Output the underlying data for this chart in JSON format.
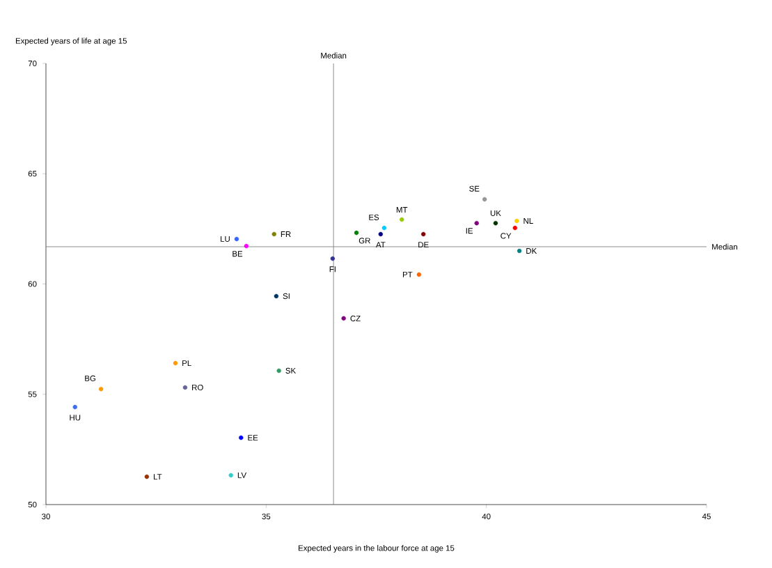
{
  "chart_data": {
    "type": "scatter",
    "xlabel": "Expected years in the labour force at age 15",
    "ylabel": "Expected years of life at age 15",
    "xlim": [
      30,
      45
    ],
    "xticks": [
      30,
      35,
      40,
      45
    ],
    "ylim": [
      50,
      70
    ],
    "yticks": [
      50,
      55,
      60,
      65,
      70
    ],
    "grid": false,
    "ref_lines": [
      {
        "axis": "x",
        "value": 36.53,
        "label": "Median"
      },
      {
        "axis": "y",
        "value": 61.69,
        "label": "Median"
      }
    ],
    "series": [
      {
        "name": "HU",
        "color": "#3c6cf0",
        "x": [
          30.66
        ],
        "values": [
          54.42
        ]
      },
      {
        "name": "BG",
        "color": "#ff9900",
        "x": [
          31.25
        ],
        "values": [
          55.24
        ]
      },
      {
        "name": "LT",
        "color": "#993300",
        "x": [
          32.29
        ],
        "values": [
          51.26
        ]
      },
      {
        "name": "PL",
        "color": "#ff9900",
        "x": [
          32.94
        ],
        "values": [
          56.41
        ]
      },
      {
        "name": "RO",
        "color": "#666699",
        "x": [
          33.16
        ],
        "values": [
          55.31
        ]
      },
      {
        "name": "LV",
        "color": "#33cccc",
        "x": [
          34.2
        ],
        "values": [
          51.33
        ]
      },
      {
        "name": "EE",
        "color": "#0000ff",
        "x": [
          34.43
        ],
        "values": [
          53.03
        ]
      },
      {
        "name": "LU",
        "color": "#3366ff",
        "x": [
          34.33
        ],
        "values": [
          62.04
        ]
      },
      {
        "name": "BE",
        "color": "#ff00ff",
        "x": [
          34.55
        ],
        "values": [
          61.72
        ]
      },
      {
        "name": "FR",
        "color": "#808000",
        "x": [
          35.18
        ],
        "values": [
          62.26
        ]
      },
      {
        "name": "SI",
        "color": "#003366",
        "x": [
          35.23
        ],
        "values": [
          59.45
        ]
      },
      {
        "name": "SK",
        "color": "#339966",
        "x": [
          35.29
        ],
        "values": [
          56.07
        ]
      },
      {
        "name": "FI",
        "color": "#333399",
        "x": [
          36.51
        ],
        "values": [
          61.15
        ]
      },
      {
        "name": "CZ",
        "color": "#800080",
        "x": [
          36.76
        ],
        "values": [
          58.44
        ]
      },
      {
        "name": "GR",
        "color": "#008000",
        "x": [
          37.05
        ],
        "values": [
          62.32
        ]
      },
      {
        "name": "AT",
        "color": "#000080",
        "x": [
          37.6
        ],
        "values": [
          62.26
        ]
      },
      {
        "name": "ES",
        "color": "#00ccff",
        "x": [
          37.68
        ],
        "values": [
          62.54
        ]
      },
      {
        "name": "MT",
        "color": "#99cc00",
        "x": [
          38.08
        ],
        "values": [
          62.92
        ]
      },
      {
        "name": "DE",
        "color": "#800000",
        "x": [
          38.57
        ],
        "values": [
          62.26
        ]
      },
      {
        "name": "PT",
        "color": "#ff6600",
        "x": [
          38.47
        ],
        "values": [
          60.43
        ]
      },
      {
        "name": "IE",
        "color": "#800080",
        "x": [
          39.78
        ],
        "values": [
          62.76
        ]
      },
      {
        "name": "SE",
        "color": "#969696",
        "x": [
          39.96
        ],
        "values": [
          63.84
        ]
      },
      {
        "name": "UK",
        "color": "#003300",
        "x": [
          40.21
        ],
        "values": [
          62.76
        ]
      },
      {
        "name": "CY",
        "color": "#ff0000",
        "x": [
          40.65
        ],
        "values": [
          62.54
        ]
      },
      {
        "name": "NL",
        "color": "#ffcc00",
        "x": [
          40.69
        ],
        "values": [
          62.86
        ]
      },
      {
        "name": "DK",
        "color": "#008080",
        "x": [
          40.75
        ],
        "values": [
          61.5
        ]
      }
    ]
  }
}
